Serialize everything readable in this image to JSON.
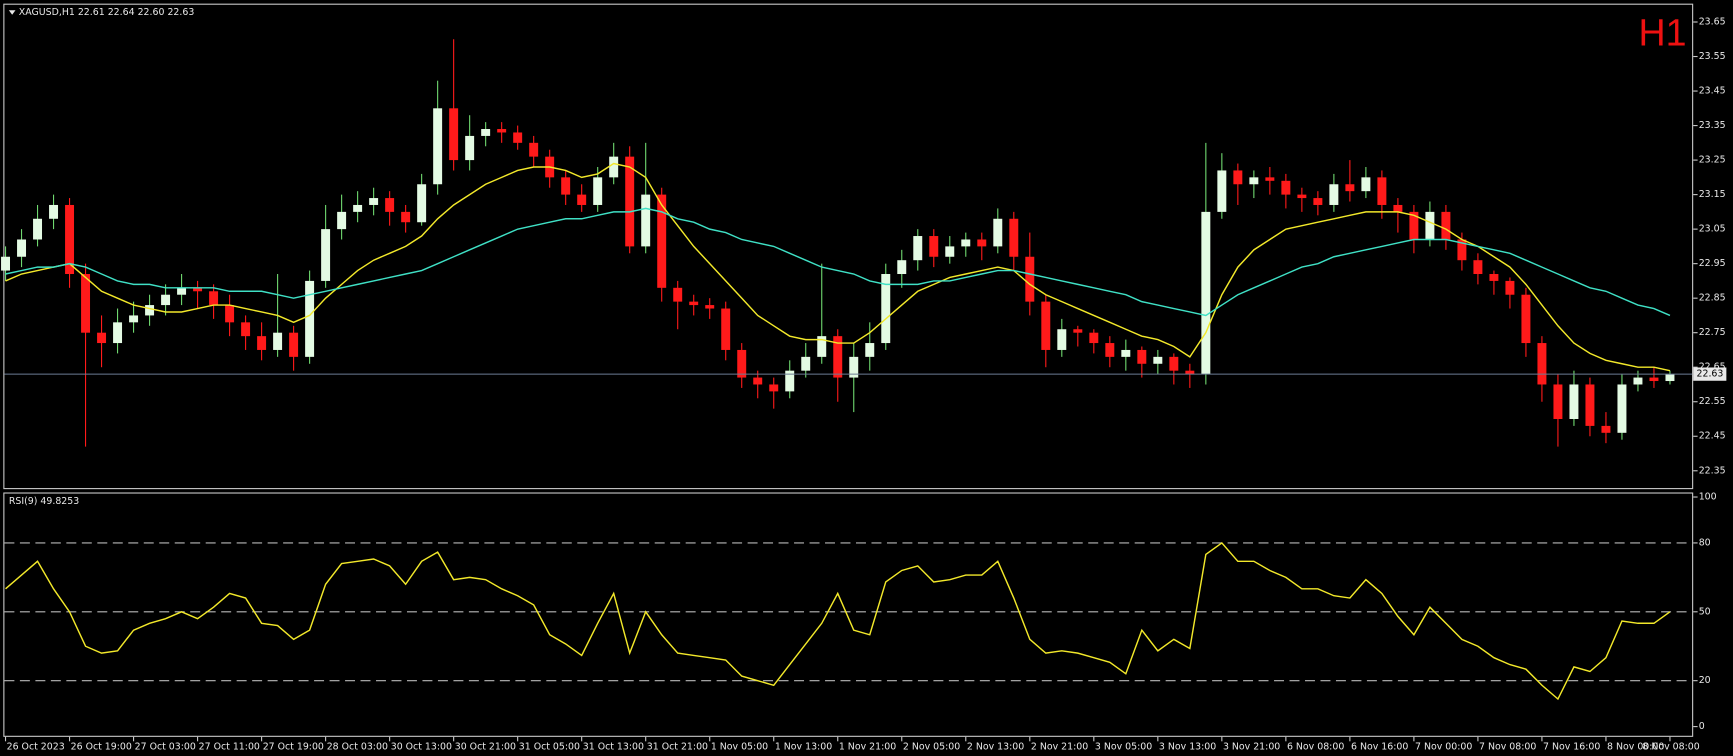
{
  "chart_data": [
    {
      "type": "candlestick",
      "title": "XAGUSD,H1  22.61 22.64 22.60 22.63",
      "corner_label": "H1",
      "categories": [
        "26 Oct 2023",
        null,
        null,
        null,
        "26 Oct 19:00",
        null,
        null,
        null,
        "27 Oct 03:00",
        null,
        null,
        null,
        "27 Oct 11:00",
        null,
        null,
        null,
        "27 Oct 19:00",
        null,
        null,
        null,
        "28 Oct 03:00",
        null,
        null,
        null,
        "30 Oct 13:00",
        null,
        null,
        null,
        "30 Oct 21:00",
        null,
        null,
        null,
        "31 Oct 05:00",
        null,
        null,
        null,
        "31 Oct 13:00",
        null,
        null,
        null,
        "31 Oct 21:00",
        null,
        null,
        null,
        "1 Nov 05:00",
        null,
        null,
        null,
        "1 Nov 13:00",
        null,
        null,
        null,
        "1 Nov 21:00",
        null,
        null,
        null,
        "2 Nov 05:00",
        null,
        null,
        null,
        "2 Nov 13:00",
        null,
        null,
        null,
        "2 Nov 21:00",
        null,
        null,
        null,
        "3 Nov 05:00",
        null,
        null,
        null,
        "3 Nov 13:00",
        null,
        null,
        null,
        "3 Nov 21:00",
        null,
        null,
        null,
        "6 Nov 08:00",
        null,
        null,
        null,
        "6 Nov 16:00",
        null,
        null,
        null,
        "7 Nov 00:00",
        null,
        null,
        null,
        "7 Nov 08:00",
        null,
        null,
        null,
        "7 Nov 16:00",
        null,
        null,
        null,
        "8 Nov 00:00",
        null,
        null,
        null,
        "8 Nov 08:00"
      ],
      "open": [
        22.93,
        22.97,
        23.02,
        23.08,
        23.12,
        22.92,
        22.75,
        22.72,
        22.78,
        22.8,
        22.83,
        22.86,
        22.88,
        22.87,
        22.83,
        22.78,
        22.74,
        22.7,
        22.75,
        22.68,
        22.9,
        23.05,
        23.1,
        23.12,
        23.14,
        23.1,
        23.07,
        23.18,
        23.4,
        23.25,
        23.32,
        23.34,
        23.33,
        23.3,
        23.26,
        23.2,
        23.15,
        23.12,
        23.2,
        23.26,
        23.0,
        23.15,
        22.88,
        22.84,
        22.83,
        22.82,
        22.7,
        22.62,
        22.6,
        22.58,
        22.64,
        22.68,
        22.74,
        22.62,
        22.68,
        22.72,
        22.92,
        22.96,
        23.03,
        22.97,
        23.0,
        23.02,
        23.0,
        23.08,
        22.97,
        22.84,
        22.7,
        22.76,
        22.75,
        22.72,
        22.68,
        22.7,
        22.66,
        22.68,
        22.64,
        22.63,
        23.1,
        23.22,
        23.18,
        23.2,
        23.19,
        23.15,
        23.14,
        23.12,
        23.18,
        23.16,
        23.2,
        23.12,
        23.1,
        23.02,
        23.1,
        23.02,
        22.96,
        22.92,
        22.9,
        22.86,
        22.72,
        22.6,
        22.5,
        22.6,
        22.48,
        22.46,
        22.6,
        22.62,
        22.61
      ],
      "high": [
        23.0,
        23.05,
        23.12,
        23.15,
        23.14,
        22.95,
        22.8,
        22.82,
        22.84,
        22.86,
        22.89,
        22.92,
        22.9,
        22.89,
        22.86,
        22.8,
        22.78,
        22.92,
        22.77,
        22.93,
        23.12,
        23.15,
        23.16,
        23.17,
        23.16,
        23.12,
        23.21,
        23.48,
        23.6,
        23.38,
        23.36,
        23.36,
        23.35,
        23.32,
        23.28,
        23.22,
        23.18,
        23.23,
        23.3,
        23.29,
        23.3,
        23.17,
        22.9,
        22.86,
        22.85,
        22.84,
        22.72,
        22.64,
        22.62,
        22.67,
        22.72,
        22.95,
        22.76,
        22.72,
        22.78,
        22.95,
        22.99,
        23.05,
        23.05,
        23.03,
        23.04,
        23.04,
        23.11,
        23.1,
        23.04,
        22.86,
        22.79,
        22.77,
        22.76,
        22.74,
        22.73,
        22.71,
        22.7,
        22.69,
        22.66,
        23.3,
        23.27,
        23.24,
        23.22,
        23.23,
        23.21,
        23.17,
        23.16,
        23.21,
        23.25,
        23.23,
        23.22,
        23.14,
        23.12,
        23.13,
        23.12,
        23.04,
        22.98,
        22.93,
        22.91,
        22.88,
        22.74,
        22.63,
        22.64,
        22.62,
        22.52,
        22.63,
        22.64,
        22.65,
        22.64
      ],
      "low": [
        22.9,
        22.94,
        23.0,
        23.05,
        22.88,
        22.42,
        22.65,
        22.69,
        22.75,
        22.77,
        22.8,
        22.83,
        22.82,
        22.79,
        22.74,
        22.7,
        22.67,
        22.68,
        22.64,
        22.66,
        22.88,
        23.02,
        23.07,
        23.09,
        23.06,
        23.04,
        23.06,
        23.15,
        23.22,
        23.22,
        23.29,
        23.3,
        23.28,
        23.23,
        23.17,
        23.12,
        23.1,
        23.1,
        23.18,
        22.98,
        22.98,
        22.84,
        22.76,
        22.8,
        22.79,
        22.67,
        22.59,
        22.56,
        22.53,
        22.56,
        22.62,
        22.66,
        22.55,
        22.52,
        22.64,
        22.7,
        22.88,
        22.93,
        22.94,
        22.95,
        22.97,
        22.96,
        22.98,
        22.93,
        22.8,
        22.65,
        22.68,
        22.71,
        22.69,
        22.65,
        22.64,
        22.62,
        22.63,
        22.6,
        22.59,
        22.6,
        23.08,
        23.12,
        23.14,
        23.15,
        23.11,
        23.1,
        23.09,
        23.1,
        23.13,
        23.14,
        23.08,
        23.04,
        22.98,
        23.0,
        22.99,
        22.93,
        22.89,
        22.86,
        22.82,
        22.68,
        22.55,
        22.42,
        22.48,
        22.45,
        22.43,
        22.44,
        22.58,
        22.59,
        22.6
      ],
      "close": [
        22.97,
        23.02,
        23.08,
        23.12,
        22.92,
        22.75,
        22.72,
        22.78,
        22.8,
        22.83,
        22.86,
        22.88,
        22.87,
        22.83,
        22.78,
        22.74,
        22.7,
        22.75,
        22.68,
        22.9,
        23.05,
        23.1,
        23.12,
        23.14,
        23.1,
        23.07,
        23.18,
        23.4,
        23.25,
        23.32,
        23.34,
        23.33,
        23.3,
        23.26,
        23.2,
        23.15,
        23.12,
        23.2,
        23.26,
        23.0,
        23.15,
        22.88,
        22.84,
        22.83,
        22.82,
        22.7,
        22.62,
        22.6,
        22.58,
        22.64,
        22.68,
        22.74,
        22.62,
        22.68,
        22.72,
        22.92,
        22.96,
        23.03,
        22.97,
        23.0,
        23.02,
        23.0,
        23.08,
        22.97,
        22.84,
        22.7,
        22.76,
        22.75,
        22.72,
        22.68,
        22.7,
        22.66,
        22.68,
        22.64,
        22.63,
        23.1,
        23.22,
        23.18,
        23.2,
        23.19,
        23.15,
        23.14,
        23.12,
        23.18,
        23.16,
        23.2,
        23.12,
        23.1,
        23.02,
        23.1,
        23.02,
        22.96,
        22.92,
        22.9,
        22.86,
        22.72,
        22.6,
        22.5,
        22.6,
        22.48,
        22.46,
        22.6,
        22.62,
        22.61,
        22.63
      ],
      "up_color": "#e4fbe4",
      "down_color": "#ff1a1a",
      "wick_up_color": "#6fd86f",
      "series": [
        {
          "color": "#f2e82a",
          "values": [
            22.9,
            22.92,
            22.93,
            22.94,
            22.95,
            22.91,
            22.87,
            22.85,
            22.83,
            22.82,
            22.81,
            22.81,
            22.82,
            22.83,
            22.83,
            22.82,
            22.81,
            22.8,
            22.78,
            22.8,
            22.85,
            22.89,
            22.93,
            22.96,
            22.98,
            23.0,
            23.03,
            23.08,
            23.12,
            23.15,
            23.18,
            23.2,
            23.22,
            23.23,
            23.23,
            23.22,
            23.2,
            23.21,
            23.24,
            23.23,
            23.2,
            23.12,
            23.06,
            23.0,
            22.95,
            22.9,
            22.85,
            22.8,
            22.77,
            22.74,
            22.73,
            22.73,
            22.72,
            22.72,
            22.75,
            22.79,
            22.83,
            22.87,
            22.89,
            22.91,
            22.92,
            22.93,
            22.94,
            22.93,
            22.89,
            22.86,
            22.84,
            22.82,
            22.8,
            22.78,
            22.76,
            22.74,
            22.73,
            22.71,
            22.68,
            22.75,
            22.86,
            22.94,
            22.99,
            23.02,
            23.05,
            23.06,
            23.07,
            23.08,
            23.09,
            23.1,
            23.1,
            23.1,
            23.09,
            23.07,
            23.05,
            23.02,
            23.0,
            22.97,
            22.94,
            22.89,
            22.83,
            22.77,
            22.72,
            22.69,
            22.67,
            22.66,
            22.65,
            22.65,
            22.64
          ]
        },
        {
          "color": "#3fe0c5",
          "values": [
            22.92,
            22.93,
            22.94,
            22.94,
            22.95,
            22.94,
            22.92,
            22.9,
            22.89,
            22.89,
            22.88,
            22.88,
            22.88,
            22.88,
            22.87,
            22.87,
            22.87,
            22.86,
            22.85,
            22.86,
            22.87,
            22.88,
            22.89,
            22.9,
            22.91,
            22.92,
            22.93,
            22.95,
            22.97,
            22.99,
            23.01,
            23.03,
            23.05,
            23.06,
            23.07,
            23.08,
            23.08,
            23.09,
            23.1,
            23.1,
            23.11,
            23.1,
            23.08,
            23.07,
            23.05,
            23.04,
            23.02,
            23.01,
            23.0,
            22.98,
            22.96,
            22.94,
            22.93,
            22.92,
            22.9,
            22.89,
            22.89,
            22.89,
            22.9,
            22.9,
            22.91,
            22.92,
            22.93,
            22.93,
            22.92,
            22.91,
            22.9,
            22.89,
            22.88,
            22.87,
            22.86,
            22.84,
            22.83,
            22.82,
            22.81,
            22.8,
            22.83,
            22.86,
            22.88,
            22.9,
            22.92,
            22.94,
            22.95,
            22.97,
            22.98,
            22.99,
            23.0,
            23.01,
            23.02,
            23.02,
            23.02,
            23.01,
            23.0,
            22.99,
            22.98,
            22.96,
            22.94,
            22.92,
            22.9,
            22.88,
            22.87,
            22.85,
            22.83,
            22.82,
            22.8
          ]
        }
      ],
      "last_price": 22.63,
      "last_price_color": "#6c7d95",
      "ylim": [
        22.3,
        23.7
      ],
      "yticks": [
        22.35,
        22.45,
        22.55,
        22.65,
        22.75,
        22.85,
        22.95,
        23.05,
        23.15,
        23.25,
        23.35,
        23.45,
        23.55,
        23.65
      ]
    },
    {
      "type": "line",
      "title": "RSI(9) 49.8253",
      "color": "#f2e82a",
      "values": [
        60,
        66,
        72,
        60,
        50,
        35,
        32,
        33,
        42,
        45,
        47,
        50,
        47,
        52,
        58,
        56,
        45,
        44,
        38,
        42,
        62,
        71,
        72,
        73,
        70,
        62,
        72,
        76,
        64,
        65,
        64,
        60,
        57,
        53,
        40,
        36,
        31,
        45,
        58,
        32,
        50,
        40,
        32,
        31,
        30,
        29,
        22,
        20,
        18,
        27,
        36,
        45,
        58,
        42,
        40,
        63,
        68,
        70,
        63,
        64,
        66,
        66,
        72,
        56,
        38,
        32,
        33,
        32,
        30,
        28,
        23,
        42,
        33,
        38,
        34,
        75,
        80,
        72,
        72,
        68,
        65,
        60,
        60,
        57,
        56,
        64,
        58,
        48,
        40,
        52,
        45,
        38,
        35,
        30,
        27,
        25,
        18,
        12,
        26,
        24,
        30,
        46,
        45,
        45,
        50
      ],
      "ylim": [
        -4,
        101.5
      ],
      "yticks": [
        0,
        20,
        50,
        80,
        100
      ],
      "levels": [
        20,
        50,
        80
      ]
    }
  ]
}
